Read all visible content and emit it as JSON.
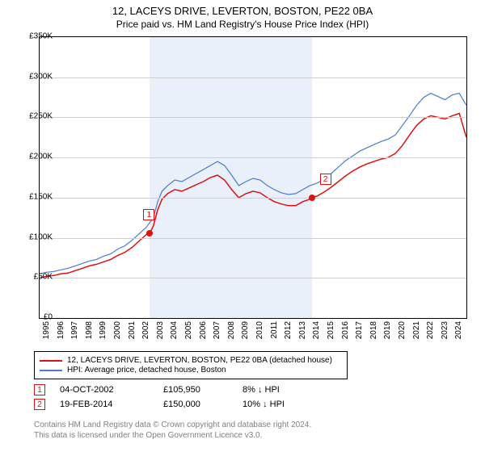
{
  "title": {
    "line1": "12, LACEYS DRIVE, LEVERTON, BOSTON, PE22 0BA",
    "line2": "Price paid vs. HM Land Registry's House Price Index (HPI)"
  },
  "chart": {
    "type": "line",
    "background_color": "#ffffff",
    "grid_color": "#cfcfcf",
    "shaded_band_color": "#eaf0fa",
    "shaded_band": {
      "x_start": 2002.75,
      "x_end": 2014.13
    },
    "xlim": [
      1995,
      2025
    ],
    "ylim": [
      0,
      350000
    ],
    "ytick_step": 50000,
    "ytick_labels": [
      "£0",
      "£50K",
      "£100K",
      "£150K",
      "£200K",
      "£250K",
      "£300K",
      "£350K"
    ],
    "xtick_step": 1,
    "xtick_labels": [
      "1995",
      "1996",
      "1997",
      "1998",
      "1999",
      "2000",
      "2001",
      "2002",
      "2003",
      "2004",
      "2005",
      "2006",
      "2007",
      "2008",
      "2009",
      "2010",
      "2011",
      "2012",
      "2013",
      "2014",
      "2015",
      "2016",
      "2017",
      "2018",
      "2019",
      "2020",
      "2021",
      "2022",
      "2023",
      "2024"
    ],
    "series": [
      {
        "name": "property",
        "label": "12, LACEYS DRIVE, LEVERTON, BOSTON, PE22 0BA (detached house)",
        "color": "#dd1111",
        "line_width": 1.5,
        "data": [
          [
            1995,
            50000
          ],
          [
            1995.5,
            52000
          ],
          [
            1996,
            53000
          ],
          [
            1996.5,
            55000
          ],
          [
            1997,
            56000
          ],
          [
            1997.5,
            59000
          ],
          [
            1998,
            62000
          ],
          [
            1998.5,
            65000
          ],
          [
            1999,
            67000
          ],
          [
            1999.5,
            70000
          ],
          [
            2000,
            73000
          ],
          [
            2000.5,
            78000
          ],
          [
            2001,
            82000
          ],
          [
            2001.5,
            88000
          ],
          [
            2002,
            96000
          ],
          [
            2002.5,
            104000
          ],
          [
            2002.75,
            105950
          ],
          [
            2003,
            115000
          ],
          [
            2003.3,
            135000
          ],
          [
            2003.6,
            148000
          ],
          [
            2004,
            155000
          ],
          [
            2004.5,
            160000
          ],
          [
            2005,
            158000
          ],
          [
            2005.5,
            162000
          ],
          [
            2006,
            166000
          ],
          [
            2006.5,
            170000
          ],
          [
            2007,
            175000
          ],
          [
            2007.5,
            178000
          ],
          [
            2008,
            172000
          ],
          [
            2008.5,
            160000
          ],
          [
            2009,
            150000
          ],
          [
            2009.5,
            155000
          ],
          [
            2010,
            158000
          ],
          [
            2010.5,
            156000
          ],
          [
            2011,
            150000
          ],
          [
            2011.5,
            145000
          ],
          [
            2012,
            142000
          ],
          [
            2012.5,
            140000
          ],
          [
            2013,
            140000
          ],
          [
            2013.5,
            145000
          ],
          [
            2014,
            148000
          ],
          [
            2014.13,
            150000
          ],
          [
            2014.5,
            152000
          ],
          [
            2015,
            157000
          ],
          [
            2015.5,
            163000
          ],
          [
            2016,
            170000
          ],
          [
            2016.5,
            177000
          ],
          [
            2017,
            183000
          ],
          [
            2017.5,
            188000
          ],
          [
            2018,
            192000
          ],
          [
            2018.5,
            195000
          ],
          [
            2019,
            198000
          ],
          [
            2019.5,
            200000
          ],
          [
            2020,
            205000
          ],
          [
            2020.5,
            215000
          ],
          [
            2021,
            228000
          ],
          [
            2021.5,
            240000
          ],
          [
            2022,
            248000
          ],
          [
            2022.5,
            252000
          ],
          [
            2023,
            250000
          ],
          [
            2023.5,
            248000
          ],
          [
            2024,
            252000
          ],
          [
            2024.5,
            255000
          ],
          [
            2025,
            225000
          ]
        ]
      },
      {
        "name": "hpi",
        "label": "HPI: Average price, detached house, Boston",
        "color": "#4a7bd0",
        "line_width": 1.2,
        "data": [
          [
            1995,
            55000
          ],
          [
            1995.5,
            57000
          ],
          [
            1996,
            58000
          ],
          [
            1996.5,
            60000
          ],
          [
            1997,
            62000
          ],
          [
            1997.5,
            65000
          ],
          [
            1998,
            68000
          ],
          [
            1998.5,
            71000
          ],
          [
            1999,
            73000
          ],
          [
            1999.5,
            77000
          ],
          [
            2000,
            80000
          ],
          [
            2000.5,
            86000
          ],
          [
            2001,
            90000
          ],
          [
            2001.5,
            97000
          ],
          [
            2002,
            105000
          ],
          [
            2002.5,
            113000
          ],
          [
            2003,
            125000
          ],
          [
            2003.3,
            145000
          ],
          [
            2003.6,
            158000
          ],
          [
            2004,
            165000
          ],
          [
            2004.5,
            172000
          ],
          [
            2005,
            170000
          ],
          [
            2005.5,
            175000
          ],
          [
            2006,
            180000
          ],
          [
            2006.5,
            185000
          ],
          [
            2007,
            190000
          ],
          [
            2007.5,
            195000
          ],
          [
            2008,
            190000
          ],
          [
            2008.5,
            178000
          ],
          [
            2009,
            165000
          ],
          [
            2009.5,
            170000
          ],
          [
            2010,
            174000
          ],
          [
            2010.5,
            172000
          ],
          [
            2011,
            165000
          ],
          [
            2011.5,
            160000
          ],
          [
            2012,
            156000
          ],
          [
            2012.5,
            154000
          ],
          [
            2013,
            155000
          ],
          [
            2013.5,
            160000
          ],
          [
            2014,
            165000
          ],
          [
            2014.5,
            168000
          ],
          [
            2015,
            173000
          ],
          [
            2015.5,
            180000
          ],
          [
            2016,
            188000
          ],
          [
            2016.5,
            196000
          ],
          [
            2017,
            202000
          ],
          [
            2017.5,
            208000
          ],
          [
            2018,
            212000
          ],
          [
            2018.5,
            216000
          ],
          [
            2019,
            220000
          ],
          [
            2019.5,
            223000
          ],
          [
            2020,
            228000
          ],
          [
            2020.5,
            240000
          ],
          [
            2021,
            252000
          ],
          [
            2021.5,
            265000
          ],
          [
            2022,
            275000
          ],
          [
            2022.5,
            280000
          ],
          [
            2023,
            276000
          ],
          [
            2023.5,
            272000
          ],
          [
            2024,
            278000
          ],
          [
            2024.5,
            280000
          ],
          [
            2025,
            265000
          ]
        ]
      }
    ],
    "markers": [
      {
        "id": "1",
        "x": 2002.75,
        "y": 105950,
        "color": "#dd1111",
        "box_offset_x": -8,
        "box_offset_y": -30
      },
      {
        "id": "2",
        "x": 2014.13,
        "y": 150000,
        "color": "#dd1111",
        "box_offset_x": 10,
        "box_offset_y": -30
      }
    ]
  },
  "legend": {
    "rows": [
      {
        "color": "#dd1111",
        "label_path": "chart.series.0.label"
      },
      {
        "color": "#4a7bd0",
        "label_path": "chart.series.1.label"
      }
    ]
  },
  "sales": [
    {
      "marker": "1",
      "marker_color": "#dd1111",
      "date": "04-OCT-2002",
      "price": "£105,950",
      "delta": "8% ↓ HPI"
    },
    {
      "marker": "2",
      "marker_color": "#dd1111",
      "date": "19-FEB-2014",
      "price": "£150,000",
      "delta": "10% ↓ HPI"
    }
  ],
  "footnote": {
    "line1": "Contains HM Land Registry data © Crown copyright and database right 2024.",
    "line2": "This data is licensed under the Open Government Licence v3.0."
  }
}
